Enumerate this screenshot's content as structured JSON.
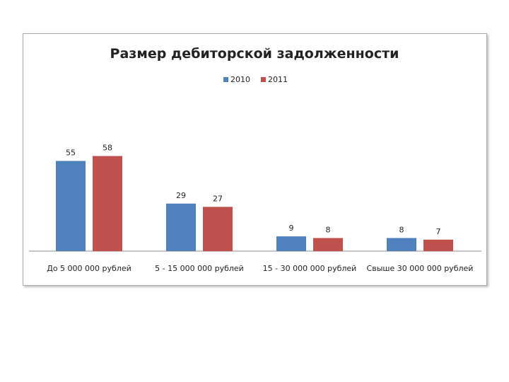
{
  "chart_data": {
    "type": "bar",
    "title": "Размер дебиторской задолженности",
    "categories": [
      "До 5 000 000 рублей",
      "5 - 15 000 000 рублей",
      "15 - 30 000 000 рублей",
      "Свыше 30 000 000 рублей"
    ],
    "series": [
      {
        "name": "2010",
        "values": [
          55,
          29,
          9,
          8
        ],
        "color": "#4f81bd"
      },
      {
        "name": "2011",
        "values": [
          58,
          27,
          8,
          7
        ],
        "color": "#c0504d"
      }
    ],
    "xlabel": "",
    "ylabel": "",
    "ylim": [
      0,
      60
    ],
    "grid": false,
    "legend_position": "top-center"
  }
}
